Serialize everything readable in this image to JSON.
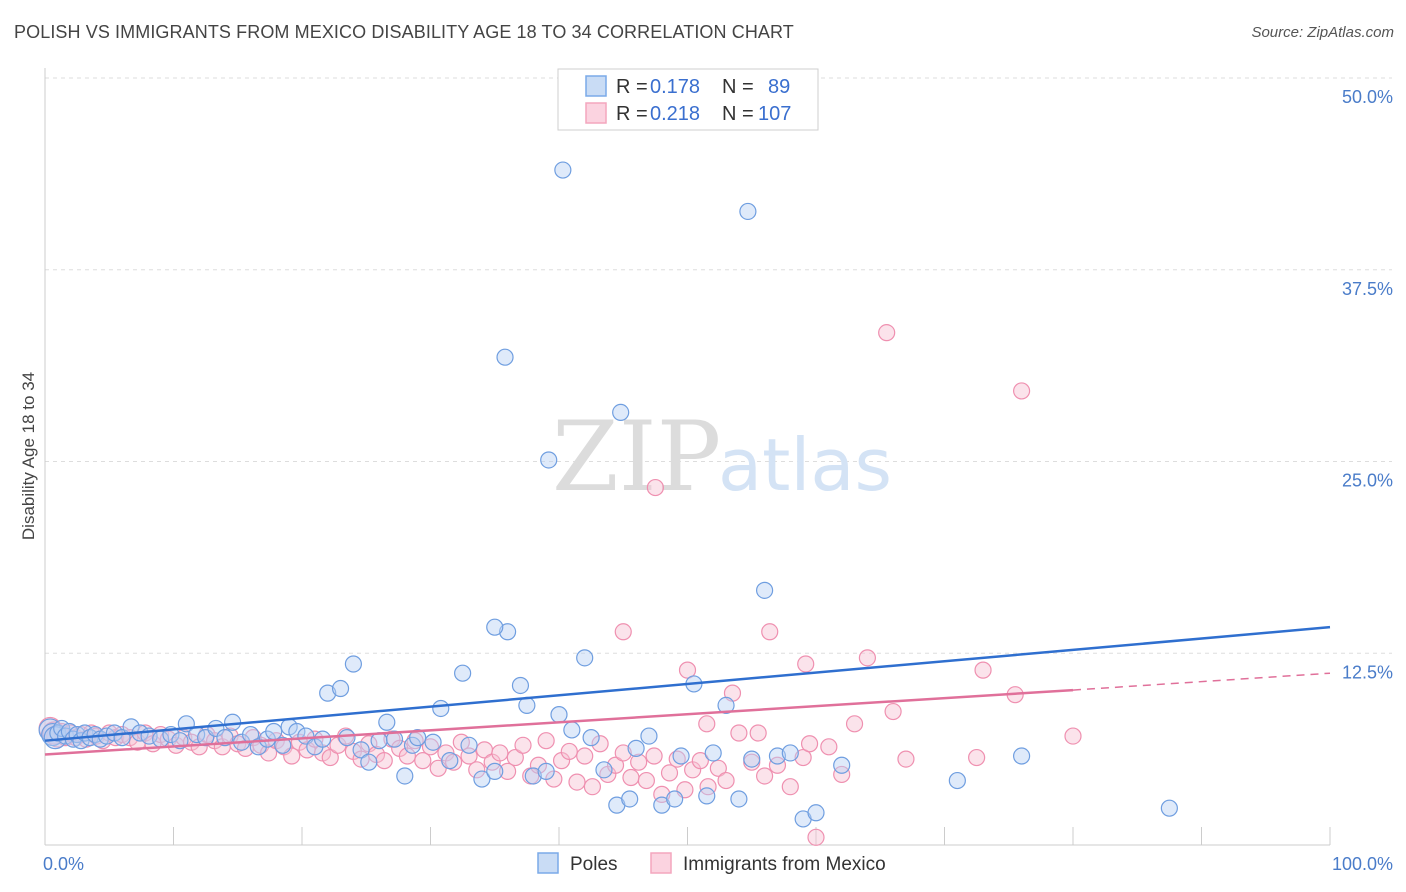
{
  "title": "POLISH VS IMMIGRANTS FROM MEXICO DISABILITY AGE 18 TO 34 CORRELATION CHART",
  "source": "Source: ZipAtlas.com",
  "watermark": {
    "zip": "ZIP",
    "atlas": "atlas"
  },
  "chart_data": {
    "type": "scatter",
    "title": "POLISH VS IMMIGRANTS FROM MEXICO DISABILITY AGE 18 TO 34 CORRELATION CHART",
    "xlabel": "",
    "ylabel": "Disability Age 18 to 34",
    "xlim": [
      0,
      100
    ],
    "ylim": [
      0,
      50
    ],
    "y_ticks": [
      12.5,
      25.0,
      37.5,
      50.0
    ],
    "y_tick_labels": [
      "12.5%",
      "25.0%",
      "37.5%",
      "50.0%"
    ],
    "x_tick_labels": [
      "0.0%",
      "100.0%"
    ],
    "colors": {
      "poles": "#7aaae8",
      "poles_line": "#2f6fcf",
      "mexico": "#f4a6be",
      "mexico_line": "#e0709a",
      "axis_text": "#4a7cc9"
    },
    "legend": {
      "rows": [
        {
          "r_label": "R =",
          "r": "0.178",
          "n_label": "N =",
          "n": "89"
        },
        {
          "r_label": "R =",
          "r": "0.218",
          "n_label": "N =",
          "n": "107"
        }
      ]
    },
    "series": [
      {
        "name": "Poles",
        "r": 0.178,
        "n": 89,
        "trend": {
          "x": [
            0,
            100
          ],
          "y": [
            6.8,
            14.2
          ]
        },
        "points": [
          [
            0.4,
            7.5
          ],
          [
            0.6,
            7.2
          ],
          [
            0.8,
            7.0
          ],
          [
            1.0,
            7.3
          ],
          [
            1.3,
            7.6
          ],
          [
            1.6,
            7.1
          ],
          [
            1.9,
            7.4
          ],
          [
            2.2,
            6.9
          ],
          [
            2.5,
            7.2
          ],
          [
            2.8,
            6.8
          ],
          [
            3.1,
            7.3
          ],
          [
            3.5,
            7.0
          ],
          [
            3.9,
            7.2
          ],
          [
            4.3,
            6.9
          ],
          [
            4.8,
            7.1
          ],
          [
            5.4,
            7.3
          ],
          [
            6.0,
            7.0
          ],
          [
            6.7,
            7.7
          ],
          [
            7.4,
            7.3
          ],
          [
            8.1,
            7.1
          ],
          [
            9.0,
            6.9
          ],
          [
            9.8,
            7.2
          ],
          [
            10.5,
            6.8
          ],
          [
            11.0,
            7.9
          ],
          [
            11.8,
            7.2
          ],
          [
            12.5,
            7.0
          ],
          [
            13.3,
            7.6
          ],
          [
            14.0,
            7.0
          ],
          [
            14.6,
            8.0
          ],
          [
            15.3,
            6.7
          ],
          [
            16.0,
            7.2
          ],
          [
            16.6,
            6.4
          ],
          [
            17.3,
            6.9
          ],
          [
            17.8,
            7.4
          ],
          [
            18.5,
            6.5
          ],
          [
            19.0,
            7.7
          ],
          [
            19.6,
            7.4
          ],
          [
            20.3,
            7.1
          ],
          [
            21.0,
            6.4
          ],
          [
            21.6,
            6.9
          ],
          [
            22.0,
            9.9
          ],
          [
            23.0,
            10.2
          ],
          [
            23.5,
            7.0
          ],
          [
            24.0,
            11.8
          ],
          [
            24.6,
            6.2
          ],
          [
            25.2,
            5.4
          ],
          [
            26.0,
            6.8
          ],
          [
            26.6,
            8.0
          ],
          [
            27.2,
            6.9
          ],
          [
            28.0,
            4.5
          ],
          [
            28.6,
            6.5
          ],
          [
            29.0,
            7.0
          ],
          [
            30.2,
            6.7
          ],
          [
            30.8,
            8.9
          ],
          [
            31.5,
            5.5
          ],
          [
            32.5,
            11.2
          ],
          [
            33.0,
            6.5
          ],
          [
            34.0,
            4.3
          ],
          [
            35.0,
            4.8
          ],
          [
            36.0,
            13.9
          ],
          [
            37.0,
            10.4
          ],
          [
            37.5,
            9.1
          ],
          [
            38.0,
            4.5
          ],
          [
            39.0,
            4.8
          ],
          [
            40.0,
            8.5
          ],
          [
            41.0,
            7.5
          ],
          [
            42.0,
            12.2
          ],
          [
            42.5,
            7.0
          ],
          [
            43.5,
            4.9
          ],
          [
            44.5,
            2.6
          ],
          [
            45.5,
            3.0
          ],
          [
            46.0,
            6.3
          ],
          [
            47.0,
            7.1
          ],
          [
            48.0,
            2.6
          ],
          [
            49.0,
            3.0
          ],
          [
            49.5,
            5.8
          ],
          [
            50.5,
            10.5
          ],
          [
            51.5,
            3.2
          ],
          [
            52.0,
            6.0
          ],
          [
            53.0,
            9.1
          ],
          [
            54.0,
            3.0
          ],
          [
            55.0,
            5.6
          ],
          [
            56.0,
            16.6
          ],
          [
            57.0,
            5.8
          ],
          [
            58.0,
            6.0
          ],
          [
            59.0,
            1.7
          ],
          [
            60.0,
            2.1
          ],
          [
            62.0,
            5.2
          ],
          [
            71.0,
            4.2
          ],
          [
            76.0,
            5.8
          ],
          [
            87.5,
            2.4
          ]
        ],
        "outliers": [
          [
            40.3,
            44.0
          ],
          [
            54.7,
            41.3
          ],
          [
            35.8,
            31.8
          ],
          [
            44.8,
            28.2
          ],
          [
            39.2,
            25.1
          ],
          [
            35.0,
            14.2
          ]
        ]
      },
      {
        "name": "Immigrants from Mexico",
        "r": 0.218,
        "n": 107,
        "trend": {
          "x": [
            0,
            80
          ],
          "y": [
            5.9,
            10.1
          ]
        },
        "trend_dashed": {
          "x": [
            80,
            100
          ],
          "y": [
            10.1,
            11.2
          ]
        },
        "points": [
          [
            0.4,
            7.6
          ],
          [
            0.7,
            7.3
          ],
          [
            1.0,
            7.1
          ],
          [
            1.3,
            7.4
          ],
          [
            1.6,
            7.0
          ],
          [
            2.0,
            7.3
          ],
          [
            2.4,
            7.0
          ],
          [
            2.8,
            7.2
          ],
          [
            3.2,
            6.9
          ],
          [
            3.6,
            7.3
          ],
          [
            4.0,
            7.1
          ],
          [
            4.5,
            6.8
          ],
          [
            5.0,
            7.3
          ],
          [
            5.5,
            7.0
          ],
          [
            6.0,
            7.2
          ],
          [
            6.6,
            7.0
          ],
          [
            7.2,
            6.7
          ],
          [
            7.8,
            7.3
          ],
          [
            8.4,
            6.6
          ],
          [
            9.0,
            7.2
          ],
          [
            9.6,
            6.9
          ],
          [
            10.2,
            6.5
          ],
          [
            10.8,
            7.0
          ],
          [
            11.4,
            6.7
          ],
          [
            12.0,
            6.4
          ],
          [
            12.6,
            7.2
          ],
          [
            13.2,
            6.8
          ],
          [
            13.8,
            6.4
          ],
          [
            14.4,
            7.1
          ],
          [
            15.0,
            6.6
          ],
          [
            15.6,
            6.3
          ],
          [
            16.2,
            7.0
          ],
          [
            16.8,
            6.5
          ],
          [
            17.4,
            6.0
          ],
          [
            18.0,
            6.8
          ],
          [
            18.6,
            6.4
          ],
          [
            19.2,
            5.8
          ],
          [
            19.8,
            6.7
          ],
          [
            20.4,
            6.2
          ],
          [
            21.0,
            6.9
          ],
          [
            21.6,
            6.0
          ],
          [
            22.2,
            5.7
          ],
          [
            22.8,
            6.5
          ],
          [
            23.4,
            7.1
          ],
          [
            24.0,
            6.1
          ],
          [
            24.6,
            5.6
          ],
          [
            25.2,
            6.6
          ],
          [
            25.8,
            5.9
          ],
          [
            26.4,
            5.5
          ],
          [
            27.0,
            6.9
          ],
          [
            27.6,
            6.3
          ],
          [
            28.2,
            5.8
          ],
          [
            28.8,
            6.8
          ],
          [
            29.4,
            5.5
          ],
          [
            30.0,
            6.4
          ],
          [
            30.6,
            5.0
          ],
          [
            31.2,
            6.0
          ],
          [
            31.8,
            5.4
          ],
          [
            32.4,
            6.7
          ],
          [
            33.0,
            5.8
          ],
          [
            33.6,
            4.9
          ],
          [
            34.2,
            6.2
          ],
          [
            34.8,
            5.4
          ],
          [
            35.4,
            6.0
          ],
          [
            36.0,
            4.8
          ],
          [
            36.6,
            5.7
          ],
          [
            37.2,
            6.5
          ],
          [
            37.8,
            4.5
          ],
          [
            38.4,
            5.2
          ],
          [
            39.0,
            6.8
          ],
          [
            39.6,
            4.3
          ],
          [
            40.2,
            5.5
          ],
          [
            40.8,
            6.1
          ],
          [
            41.4,
            4.1
          ],
          [
            42.0,
            5.8
          ],
          [
            42.6,
            3.8
          ],
          [
            43.2,
            6.6
          ],
          [
            43.8,
            4.6
          ],
          [
            44.4,
            5.2
          ],
          [
            45.0,
            6.0
          ],
          [
            45.6,
            4.4
          ],
          [
            46.2,
            5.4
          ],
          [
            46.8,
            4.2
          ],
          [
            47.4,
            5.8
          ],
          [
            48.0,
            3.3
          ],
          [
            48.6,
            4.7
          ],
          [
            49.2,
            5.6
          ],
          [
            49.8,
            3.6
          ],
          [
            50.4,
            4.9
          ],
          [
            51.0,
            5.5
          ],
          [
            51.6,
            3.8
          ],
          [
            52.4,
            5.0
          ],
          [
            53.0,
            4.2
          ],
          [
            54.0,
            7.3
          ],
          [
            55.0,
            5.4
          ],
          [
            56.0,
            4.5
          ],
          [
            58.0,
            3.8
          ],
          [
            59.0,
            5.7
          ],
          [
            60.0,
            0.5
          ],
          [
            61.0,
            6.4
          ],
          [
            62.0,
            4.6
          ]
        ],
        "outliers": [
          [
            65.5,
            33.4
          ],
          [
            76.0,
            29.6
          ],
          [
            47.5,
            23.3
          ],
          [
            45.0,
            13.9
          ],
          [
            56.4,
            13.9
          ],
          [
            50.0,
            11.4
          ],
          [
            51.5,
            7.9
          ],
          [
            55.5,
            7.3
          ],
          [
            66.0,
            8.7
          ],
          [
            57.0,
            5.2
          ],
          [
            72.5,
            5.7
          ],
          [
            67.0,
            5.6
          ],
          [
            59.2,
            11.8
          ],
          [
            64.0,
            12.2
          ],
          [
            63.0,
            7.9
          ],
          [
            53.5,
            9.9
          ],
          [
            59.5,
            6.6
          ],
          [
            80.0,
            7.1
          ],
          [
            75.5,
            9.8
          ],
          [
            73.0,
            11.4
          ]
        ]
      }
    ]
  },
  "bottom_legend": [
    {
      "label": "Poles"
    },
    {
      "label": "Immigrants from Mexico"
    }
  ]
}
